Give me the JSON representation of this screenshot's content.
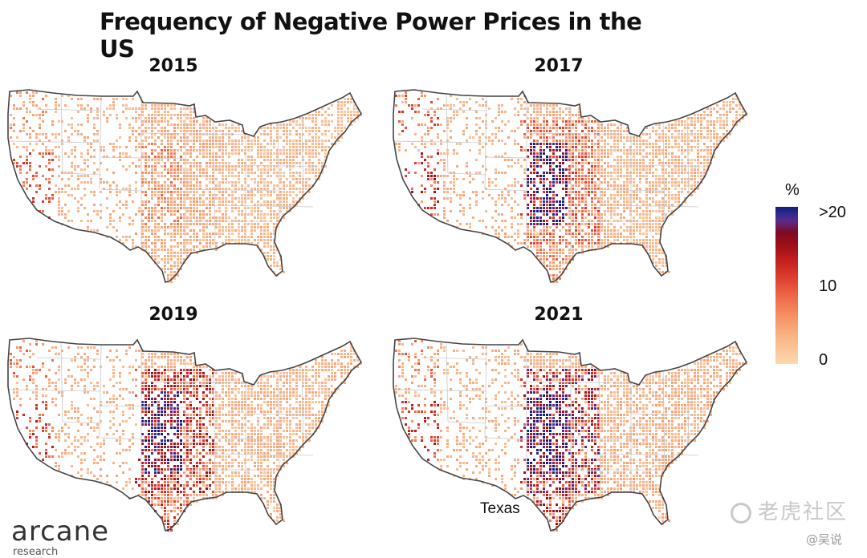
{
  "title": "Frequency of Negative Power Prices in the US",
  "panels": [
    {
      "id": "2015",
      "year": "2015",
      "intensity": {
        "plains": 0.12,
        "plains_hot": 0.3,
        "california": 0.32,
        "northwest": 0.28,
        "southtexas": 0.12,
        "east": 0.08
      }
    },
    {
      "id": "2017",
      "year": "2017",
      "intensity": {
        "plains": 0.38,
        "plains_hot": 1.0,
        "california": 0.5,
        "northwest": 0.45,
        "southtexas": 0.3,
        "east": 0.1
      }
    },
    {
      "id": "2019",
      "year": "2019",
      "intensity": {
        "plains": 0.6,
        "plains_hot": 0.85,
        "california": 0.42,
        "northwest": 0.35,
        "southtexas": 0.55,
        "east": 0.1
      }
    },
    {
      "id": "2021",
      "year": "2021",
      "intensity": {
        "plains": 0.8,
        "plains_hot": 1.0,
        "california": 0.4,
        "northwest": 0.35,
        "southtexas": 0.7,
        "east": 0.12
      }
    }
  ],
  "annotation": {
    "texas_label": "Texas"
  },
  "legend": {
    "unit": "%",
    "ticks": [
      ">20",
      "10",
      "0"
    ],
    "colors": [
      "#141c78",
      "#5c2a8a",
      "#9e0f14",
      "#dc3a2c",
      "#f58c60",
      "#fcd9ae"
    ]
  },
  "branding": {
    "logo": "arcane",
    "logo_sub": "research"
  },
  "watermark": {
    "text": "老虎社区",
    "handle": "@吴说"
  }
}
